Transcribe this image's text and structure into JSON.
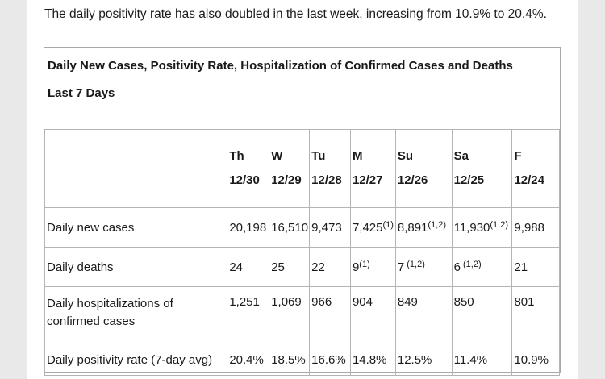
{
  "intro": "The daily positivity rate has also doubled in the last week, increasing from 10.9% to 20.4%.",
  "table": {
    "title": "Daily New Cases, Positivity Rate, Hospitalization of Confirmed Cases and Deaths",
    "subtitle": "Last 7 Days",
    "days": [
      {
        "abbr": "Th",
        "date": "12/30"
      },
      {
        "abbr": "W",
        "date": "12/29"
      },
      {
        "abbr": "Tu",
        "date": "12/28"
      },
      {
        "abbr": "M",
        "date": "12/27"
      },
      {
        "abbr": "Su",
        "date": "12/26"
      },
      {
        "abbr": "Sa",
        "date": "12/25"
      },
      {
        "abbr": "F",
        "date": "12/24"
      }
    ],
    "rows": [
      {
        "label": "Daily new cases",
        "cells": [
          {
            "v": "20,198",
            "s": ""
          },
          {
            "v": "16,510",
            "s": ""
          },
          {
            "v": "9,473",
            "s": ""
          },
          {
            "v": "7,425",
            "s": "(1)"
          },
          {
            "v": "8,891",
            "s": "(1,2)"
          },
          {
            "v": "11,930",
            "s": "(1,2)"
          },
          {
            "v": "9,988",
            "s": ""
          }
        ]
      },
      {
        "label": "Daily deaths",
        "cells": [
          {
            "v": "24",
            "s": ""
          },
          {
            "v": "25",
            "s": ""
          },
          {
            "v": "22",
            "s": ""
          },
          {
            "v": "9",
            "s": "(1)"
          },
          {
            "v": "7",
            "s": " (1,2)"
          },
          {
            "v": "6",
            "s": " (1,2)"
          },
          {
            "v": "21",
            "s": ""
          }
        ]
      },
      {
        "label": "Daily hospitalizations of confirmed cases",
        "cells": [
          {
            "v": "1,251",
            "s": ""
          },
          {
            "v": "1,069",
            "s": ""
          },
          {
            "v": "966",
            "s": ""
          },
          {
            "v": "904",
            "s": ""
          },
          {
            "v": "849",
            "s": ""
          },
          {
            "v": "850",
            "s": ""
          },
          {
            "v": "801",
            "s": ""
          }
        ]
      },
      {
        "label": "Daily positivity rate (7-day avg)",
        "cells": [
          {
            "v": "20.4%",
            "s": ""
          },
          {
            "v": "18.5%",
            "s": ""
          },
          {
            "v": "16.6%",
            "s": ""
          },
          {
            "v": "14.8%",
            "s": ""
          },
          {
            "v": "12.5%",
            "s": ""
          },
          {
            "v": "11.4%",
            "s": ""
          },
          {
            "v": "10.9%",
            "s": ""
          }
        ]
      }
    ]
  }
}
